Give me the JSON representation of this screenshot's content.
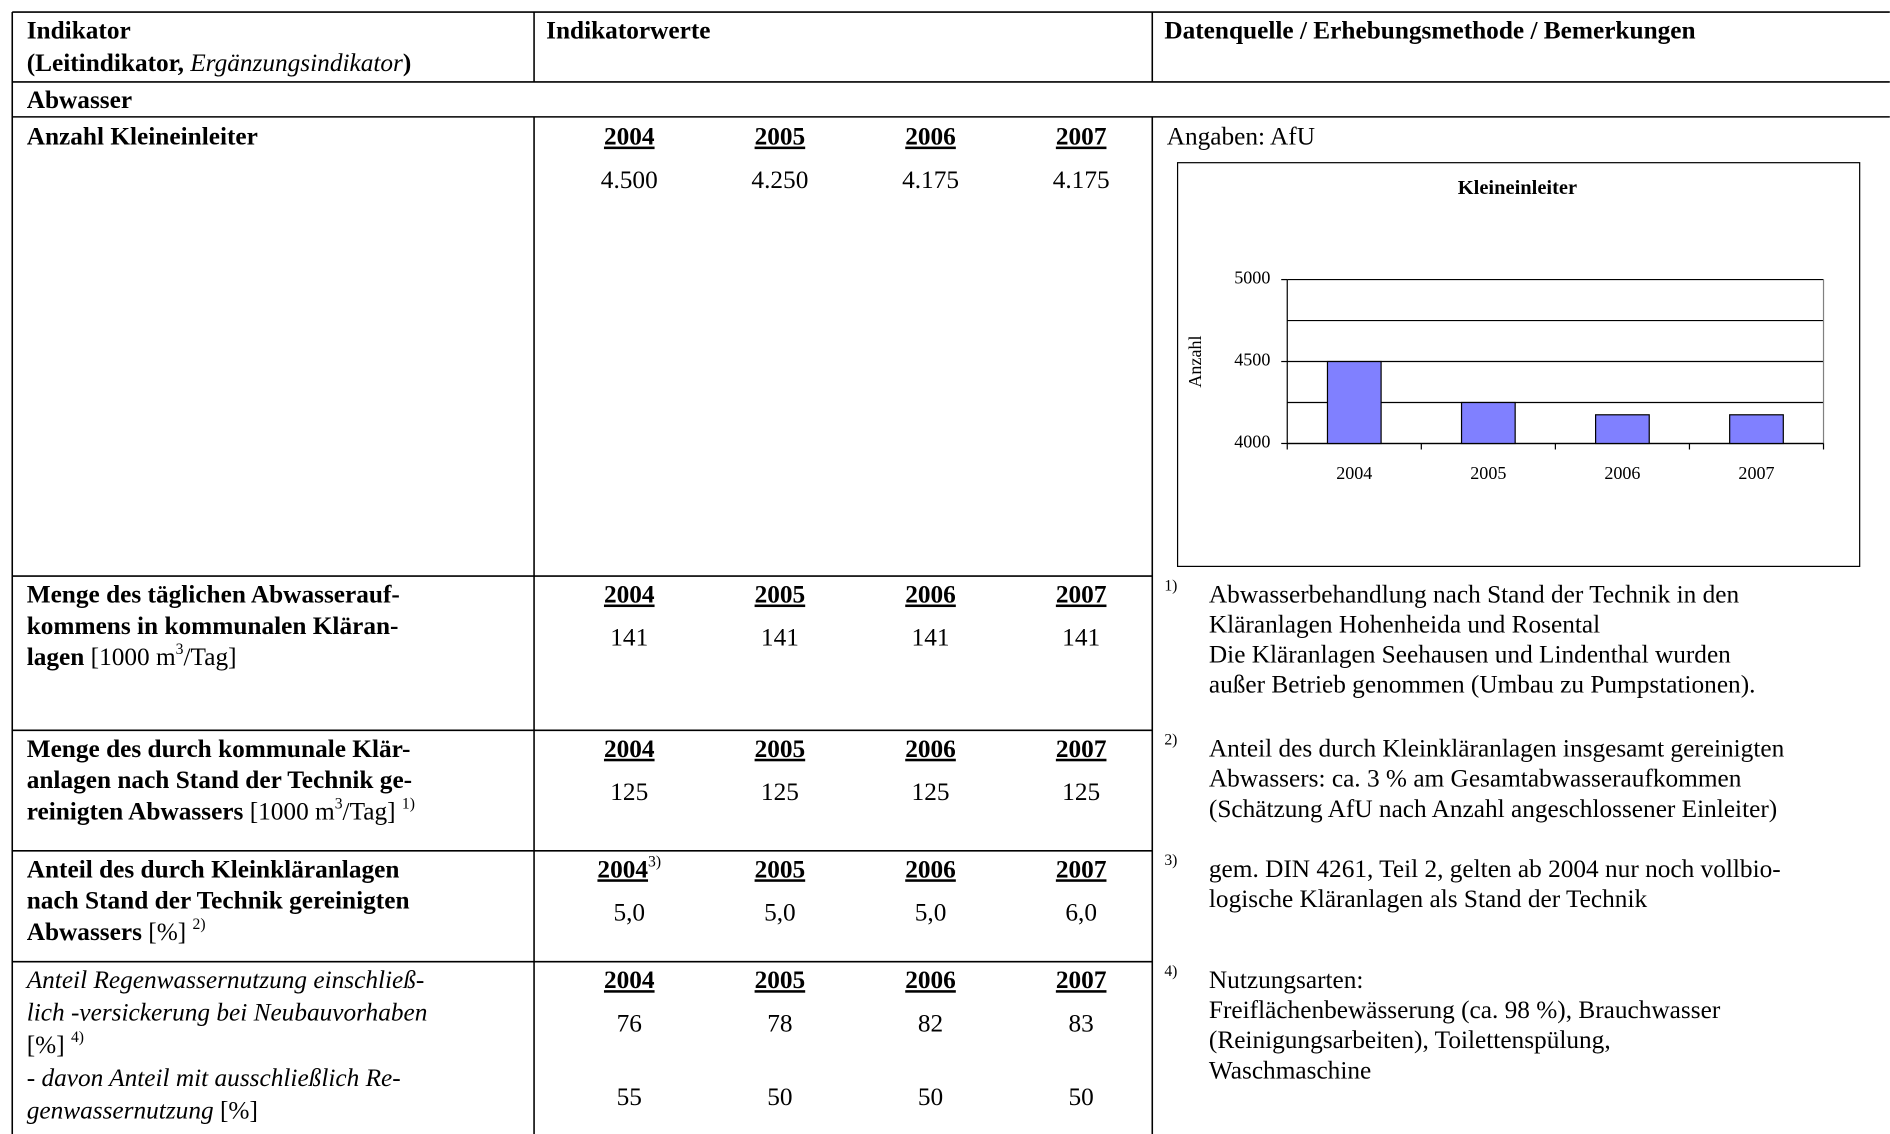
{
  "header": {
    "indicator": [
      [
        {
          "text": "Indikator",
          "style": "bold"
        }
      ],
      [
        {
          "text": "(Leitindikator, ",
          "style": "bold"
        },
        {
          "text": "Ergänzungsindikator",
          "style": "italic"
        },
        {
          "text": ")",
          "style": "bold"
        }
      ]
    ],
    "values": "Indikatorwerte",
    "source": "Datenquelle / Erhebungsmethode / Bemerkungen"
  },
  "section": "Abwasser",
  "rows": [
    {
      "label": [
        [
          {
            "text": "Anzahl Kleineinleiter",
            "style": "bold"
          }
        ]
      ],
      "years": [
        "2004",
        "2005",
        "2006",
        "2007"
      ],
      "values": [
        "4.500",
        "4.250",
        "4.175",
        "4.175"
      ],
      "source": "Angaben: AfU"
    },
    {
      "label": [
        [
          {
            "text": "Menge des täglichen Abwasserauf-",
            "style": "bold"
          }
        ],
        [
          {
            "text": "kommens in kommunalen Kläran-",
            "style": "bold"
          }
        ],
        [
          {
            "text": "lagen",
            "style": "bold"
          },
          {
            "text": " [1000 m",
            "style": "normal"
          },
          {
            "text": "3",
            "style": "sup"
          },
          {
            "text": "/Tag]",
            "style": "normal"
          }
        ]
      ],
      "years": [
        "2004",
        "2005",
        "2006",
        "2007"
      ],
      "values": [
        "141",
        "141",
        "141",
        "141"
      ],
      "note": {
        "marker": "1)",
        "lines": [
          "Abwasserbehandlung nach Stand der Technik in den",
          "Kläranlagen Hohenheida und Rosental",
          "Die Kläranlagen Seehausen und Lindenthal wurden",
          "außer Betrieb genommen (Umbau zu Pumpstationen)."
        ]
      }
    },
    {
      "label": [
        [
          {
            "text": "Menge des durch kommunale Klär-",
            "style": "bold"
          }
        ],
        [
          {
            "text": "anlagen nach Stand der Technik ge-",
            "style": "bold"
          }
        ],
        [
          {
            "text": "reinigten Abwassers",
            "style": "bold"
          },
          {
            "text": " [1000 m",
            "style": "normal"
          },
          {
            "text": "3",
            "style": "sup"
          },
          {
            "text": "/Tag] ",
            "style": "normal"
          },
          {
            "text": "1)",
            "style": "sup"
          }
        ]
      ],
      "years": [
        "2004",
        "2005",
        "2006",
        "2007"
      ],
      "values": [
        "125",
        "125",
        "125",
        "125"
      ],
      "note": {
        "marker": "2)",
        "lines": [
          "Anteil des durch Kleinkläranlagen insgesamt gereinigten",
          "Abwassers: ca. 3 % am Gesamtabwasseraufkommen",
          "(Schätzung AfU nach Anzahl angeschlossener Einleiter)"
        ]
      }
    },
    {
      "label": [
        [
          {
            "text": "Anteil des durch Kleinkläranlagen",
            "style": "bold"
          }
        ],
        [
          {
            "text": "nach Stand der Technik gereinigten",
            "style": "bold"
          }
        ],
        [
          {
            "text": "Abwassers",
            "style": "bold"
          },
          {
            "text": " [%] ",
            "style": "normal"
          },
          {
            "text": "2)",
            "style": "sup"
          }
        ]
      ],
      "years": [
        "2004",
        "2005",
        "2006",
        "2007"
      ],
      "first_year_note": "3)",
      "values": [
        "5,0",
        "5,0",
        "5,0",
        "6,0"
      ],
      "note": {
        "marker": "3)",
        "lines": [
          "gem. DIN 4261, Teil 2, gelten ab 2004 nur noch vollbio-",
          "logische Kläranlagen als Stand der Technik"
        ]
      }
    },
    {
      "label": [
        [
          {
            "text": "Anteil Regenwassernutzung einschließ-",
            "style": "italic"
          }
        ],
        [
          {
            "text": "lich -versickerung bei Neubauvorhaben",
            "style": "italic"
          }
        ],
        [
          {
            "text": "[%] ",
            "style": "normal"
          },
          {
            "text": "4)",
            "style": "sup"
          }
        ]
      ],
      "years": [
        "2004",
        "2005",
        "2006",
        "2007"
      ],
      "values": [
        "76",
        "78",
        "82",
        "83"
      ],
      "sub": {
        "label": [
          [
            {
              "text": "-  davon Anteil mit ausschließlich Re-",
              "style": "italic"
            }
          ],
          [
            {
              "text": "   genwassernutzung ",
              "style": "italic"
            },
            {
              "text": "[%]",
              "style": "normal"
            }
          ]
        ],
        "values": [
          "55",
          "50",
          "50",
          "50"
        ]
      },
      "note": {
        "marker": "4)",
        "lines": [
          "Nutzungsarten:",
          "Freiflächenbewässerung (ca. 98 %), Brauchwasser",
          "(Reinigungsarbeiten), Toilettenspülung,",
          "Waschmaschine"
        ]
      }
    }
  ],
  "chart_data": {
    "type": "bar",
    "title": "Kleineinleiter",
    "y_label": "Anzahl",
    "categories": [
      "2004",
      "2005",
      "2006",
      "2007"
    ],
    "values": [
      4500,
      4250,
      4175,
      4175
    ],
    "color": "#8080ff",
    "ylim": [
      4000,
      5000
    ],
    "yticks": [
      4000,
      4500,
      5000
    ],
    "minor_gridlines": [
      4250,
      4750
    ],
    "grid": true
  }
}
